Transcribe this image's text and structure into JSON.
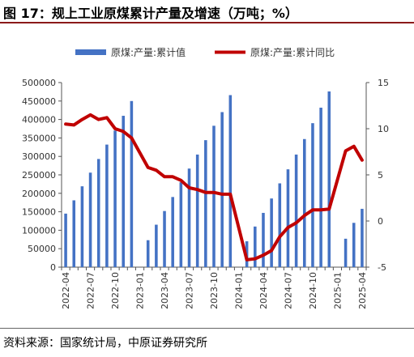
{
  "title": "图 17：规上工业原煤累计产量及增速（万吨；%）",
  "source": "资料来源：国家统计局，中原证券研究所",
  "colors": {
    "bar": "#4472c4",
    "line": "#c00000",
    "rule": "#8b1a1a"
  },
  "chart_data": {
    "type": "bar+line",
    "x": [
      "2022-04",
      "2022-05",
      "2022-06",
      "2022-07",
      "2022-08",
      "2022-09",
      "2022-10",
      "2022-11",
      "2022-12",
      "2023-01",
      "2023-02",
      "2023-03",
      "2023-04",
      "2023-05",
      "2023-06",
      "2023-07",
      "2023-08",
      "2023-09",
      "2023-10",
      "2023-11",
      "2023-12",
      "2024-01",
      "2024-02",
      "2024-03",
      "2024-04",
      "2024-05",
      "2024-06",
      "2024-07",
      "2024-08",
      "2024-09",
      "2024-10",
      "2024-11",
      "2024-12",
      "2025-01",
      "2025-02",
      "2025-03",
      "2025-04"
    ],
    "xtick_labels": [
      "2022-04",
      "2022-07",
      "2022-10",
      "2023-01",
      "2023-04",
      "2023-07",
      "2023-10",
      "2024-01",
      "2024-04",
      "2024-07",
      "2024-10",
      "2025-01",
      "2025-04"
    ],
    "series": [
      {
        "name": "原煤:产量:累计值",
        "type": "bar",
        "axis": "left",
        "values": [
          145000,
          181000,
          219000,
          256000,
          293000,
          332000,
          370000,
          410000,
          450000,
          null,
          73000,
          115000,
          152000,
          190000,
          230000,
          267000,
          305000,
          344000,
          383000,
          420000,
          466000,
          null,
          70000,
          110000,
          147000,
          186000,
          227000,
          265000,
          305000,
          347000,
          390000,
          432000,
          476000,
          null,
          77000,
          120000,
          158000
        ]
      },
      {
        "name": "原煤:产量:累计同比",
        "type": "line",
        "axis": "right",
        "values": [
          10.5,
          10.4,
          11.0,
          11.5,
          11.0,
          11.2,
          10.0,
          9.7,
          9.0,
          null,
          5.8,
          5.5,
          4.8,
          4.8,
          4.4,
          3.6,
          3.4,
          3.1,
          3.1,
          2.9,
          2.9,
          null,
          -4.2,
          -4.1,
          -3.7,
          -3.2,
          -1.7,
          -0.7,
          -0.2,
          0.6,
          1.2,
          1.2,
          1.3,
          null,
          7.6,
          8.1,
          6.6
        ]
      }
    ],
    "y_left": {
      "range": [
        0,
        500000
      ],
      "ticks": [
        0,
        50000,
        100000,
        150000,
        200000,
        250000,
        300000,
        350000,
        400000,
        450000,
        500000
      ]
    },
    "y_right": {
      "range": [
        -5,
        15
      ],
      "ticks": [
        -5,
        0,
        5,
        10,
        15
      ]
    },
    "legend": {
      "position": "top"
    },
    "grid": false
  }
}
